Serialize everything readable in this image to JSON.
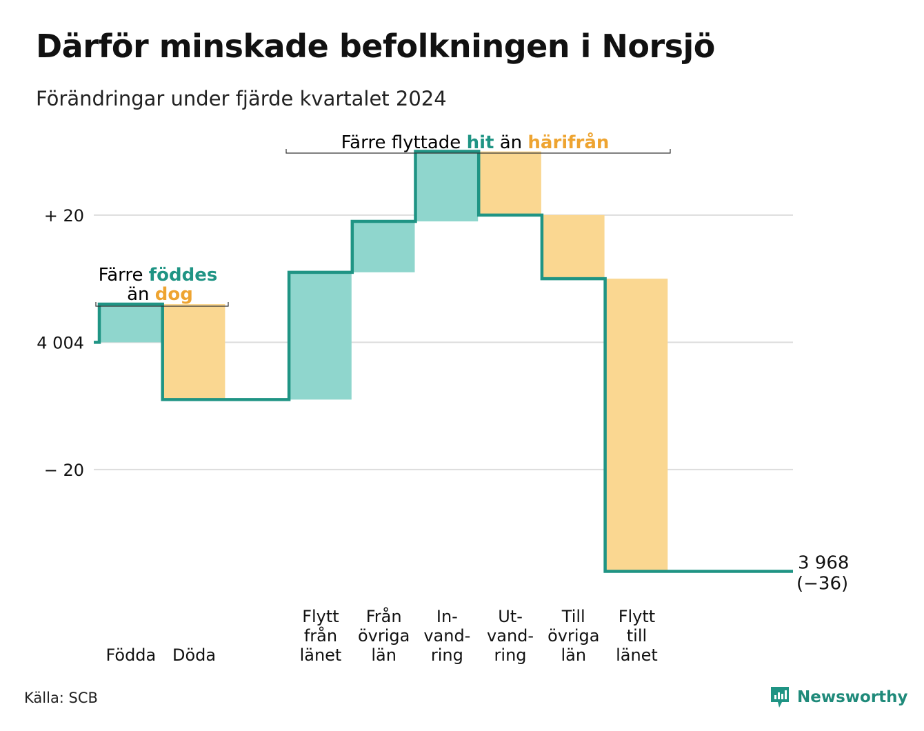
{
  "title": "Därför minskade befolkningen i Norsjö",
  "subtitle": "Förändringar under fjärde kvartalet 2024",
  "source": "Källa: SCB",
  "brand": "Newsworthy",
  "colors": {
    "inflow": "#8fd6cd",
    "outflow": "#fad791",
    "line": "#1f9484",
    "accent_teal": "#1f9484",
    "accent_orange": "#eea431",
    "grid": "#dddddd",
    "text": "#111111"
  },
  "annotations": {
    "births_deaths": {
      "line1": "Färre",
      "hl1": "föddes",
      "line2": "än",
      "hl2": "dog"
    },
    "migration": {
      "pre": "Färre flyttade",
      "hl1": "hit",
      "mid": "än",
      "hl2": "härifrån"
    }
  },
  "chart_data": {
    "type": "waterfall",
    "title": "Därför minskade befolkningen i Norsjö",
    "subtitle": "Förändringar under fjärde kvartalet 2024",
    "start_value": 4004,
    "end_value": 3968,
    "end_label": "3 968",
    "end_change_label": "(−36)",
    "ylim": [
      -38,
      28
    ],
    "yticks": [
      {
        "value": 20,
        "label": "+ 20"
      },
      {
        "value": 0,
        "label": "4 004"
      },
      {
        "value": -20,
        "label": "− 20"
      }
    ],
    "grid": true,
    "steps": [
      {
        "category": [
          "Födda"
        ],
        "type": "in",
        "change": 6
      },
      {
        "category": [
          "Döda"
        ],
        "type": "out",
        "change": -15
      },
      {
        "category": [
          ""
        ],
        "type": "none",
        "change": 0
      },
      {
        "category": [
          "Flytt",
          "från",
          "länet"
        ],
        "type": "in",
        "change": 20
      },
      {
        "category": [
          "Från",
          "övriga",
          "län"
        ],
        "type": "in",
        "change": 8
      },
      {
        "category": [
          "In-",
          "vand-",
          "ring"
        ],
        "type": "in",
        "change": 11
      },
      {
        "category": [
          "Ut-",
          "vand-",
          "ring"
        ],
        "type": "out",
        "change": -10
      },
      {
        "category": [
          "Till",
          "övriga",
          "län"
        ],
        "type": "out",
        "change": -10
      },
      {
        "category": [
          "Flytt",
          "till",
          "länet"
        ],
        "type": "out",
        "change": -46
      },
      {
        "category": [
          ""
        ],
        "type": "none",
        "change": 0
      }
    ]
  }
}
